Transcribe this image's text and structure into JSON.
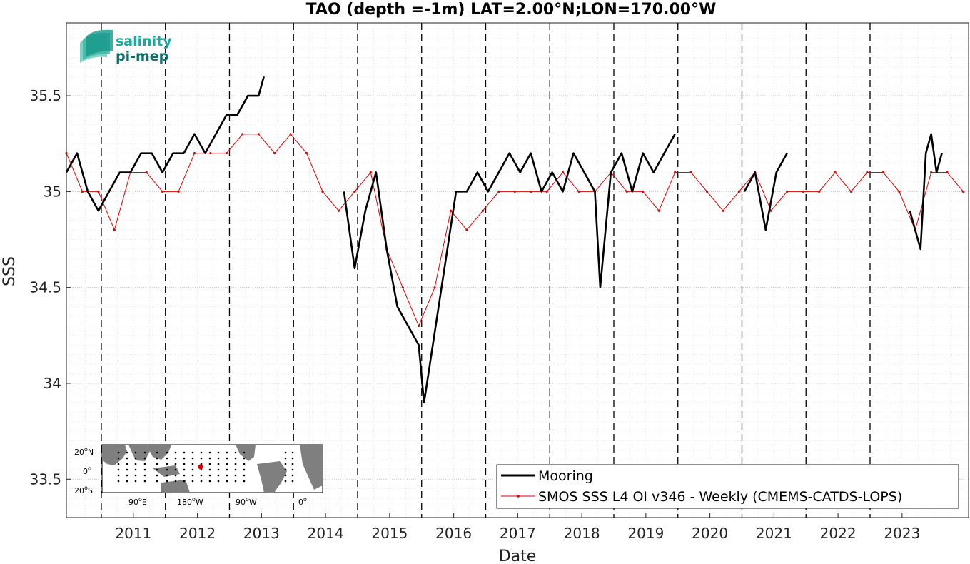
{
  "chart_data": {
    "type": "line",
    "title": "TAO (depth =-1m) LAT=2.00°N;LON=170.00°W",
    "xlabel": "Date",
    "ylabel": "SSS",
    "xlim": [
      "2010-06-15",
      "2024-07-15"
    ],
    "ylim": [
      33.3,
      35.88
    ],
    "x_ticks": [
      "2011",
      "2012",
      "2013",
      "2014",
      "2015",
      "2016",
      "2017",
      "2018",
      "2019",
      "2020",
      "2021",
      "2022",
      "2023"
    ],
    "y_ticks": [
      "33.5",
      "34",
      "34.5",
      "35",
      "35.5"
    ],
    "y_tick_values": [
      33.5,
      34,
      34.5,
      35,
      35.5
    ],
    "grid": "dotted minor + major",
    "year_boundaries": [
      "2011",
      "2012",
      "2013",
      "2014",
      "2015",
      "2016",
      "2017",
      "2018",
      "2019",
      "2020",
      "2021",
      "2022",
      "2023"
    ],
    "legend_placement": "bottom-right",
    "series": [
      {
        "name": "Mooring",
        "color": "#000000",
        "style": "thick line",
        "x": [
          "2010-06",
          "2010-08",
          "2010-10",
          "2010-12",
          "2011-02",
          "2011-04",
          "2011-06",
          "2011-08",
          "2011-10",
          "2011-12",
          "2012-02",
          "2012-04",
          "2012-06",
          "2012-08",
          "2012-10",
          "2012-12",
          "2013-02",
          "2013-04",
          "2013-06",
          "2013-07",
          "2014-10",
          "2014-12",
          "2015-02",
          "2015-04",
          "2015-06",
          "2015-08",
          "2015-10",
          "2015-12",
          "2016-01",
          "2016-07",
          "2016-09",
          "2016-11",
          "2017-01",
          "2017-03",
          "2017-05",
          "2017-07",
          "2017-09",
          "2017-11",
          "2018-01",
          "2018-03",
          "2018-05",
          "2018-07",
          "2018-09",
          "2018-10",
          "2018-12",
          "2019-02",
          "2019-04",
          "2019-06",
          "2019-08",
          "2019-10",
          "2019-12",
          "2021-01",
          "2021-03",
          "2021-05",
          "2021-07",
          "2021-09",
          "2023-08",
          "2023-10",
          "2023-11",
          "2023-12",
          "2024-01",
          "2024-02"
        ],
        "y": [
          35.1,
          35.2,
          35.0,
          34.9,
          35.0,
          35.1,
          35.1,
          35.2,
          35.2,
          35.1,
          35.2,
          35.2,
          35.3,
          35.2,
          35.3,
          35.4,
          35.4,
          35.5,
          35.5,
          35.6,
          35.0,
          34.6,
          34.9,
          35.1,
          34.7,
          34.4,
          34.3,
          34.2,
          33.9,
          35.0,
          35.0,
          35.1,
          35.0,
          35.1,
          35.2,
          35.1,
          35.2,
          35.0,
          35.1,
          35.0,
          35.2,
          35.1,
          35.0,
          34.5,
          35.1,
          35.2,
          35.0,
          35.2,
          35.1,
          35.2,
          35.3,
          35.0,
          35.1,
          34.8,
          35.1,
          35.2,
          34.9,
          34.7,
          35.2,
          35.3,
          35.1,
          35.2
        ]
      },
      {
        "name": "SMOS SSS L4 OI v346 - Weekly (CMEMS-CATDS-LOPS)",
        "color": "#e10000",
        "style": "thin line with dot markers",
        "x": [
          "2010-06",
          "2010-09",
          "2010-12",
          "2011-03",
          "2011-06",
          "2011-09",
          "2011-12",
          "2012-03",
          "2012-06",
          "2012-09",
          "2012-12",
          "2013-03",
          "2013-06",
          "2013-09",
          "2013-12",
          "2014-03",
          "2014-06",
          "2014-09",
          "2014-12",
          "2015-03",
          "2015-06",
          "2015-09",
          "2015-12",
          "2016-03",
          "2016-06",
          "2016-09",
          "2016-12",
          "2017-03",
          "2017-06",
          "2017-09",
          "2017-12",
          "2018-03",
          "2018-06",
          "2018-09",
          "2018-12",
          "2019-03",
          "2019-06",
          "2019-09",
          "2019-12",
          "2020-03",
          "2020-06",
          "2020-09",
          "2020-12",
          "2021-03",
          "2021-06",
          "2021-09",
          "2021-12",
          "2022-03",
          "2022-06",
          "2022-09",
          "2022-12",
          "2023-03",
          "2023-06",
          "2023-09",
          "2023-12",
          "2024-03",
          "2024-06"
        ],
        "y": [
          35.2,
          35.0,
          35.0,
          34.8,
          35.1,
          35.1,
          35.0,
          35.0,
          35.2,
          35.2,
          35.2,
          35.3,
          35.3,
          35.2,
          35.3,
          35.2,
          35.0,
          34.9,
          35.0,
          35.1,
          34.7,
          34.5,
          34.3,
          34.5,
          34.9,
          34.8,
          34.9,
          35.0,
          35.0,
          35.0,
          35.0,
          35.1,
          35.0,
          35.0,
          35.1,
          35.0,
          35.0,
          34.9,
          35.1,
          35.1,
          35.0,
          34.9,
          35.0,
          35.1,
          34.9,
          35.0,
          35.0,
          35.0,
          35.1,
          35.0,
          35.1,
          35.1,
          35.0,
          34.8,
          35.1,
          35.1,
          35.0
        ]
      }
    ]
  },
  "logo": {
    "line1": "salinity",
    "line2": "pi-mep",
    "color1": "#1aa99a",
    "color2": "#0f6f6a"
  },
  "inset_map": {
    "lat_labels": [
      "20",
      "N",
      "0",
      "20",
      "S"
    ],
    "lon_labels": [
      "90",
      "E",
      "180",
      "W",
      "90",
      "W",
      "0"
    ],
    "degree_sign": "o",
    "station_marker_color": "#e10000",
    "land_color": "#7f7f7f"
  },
  "colors": {
    "mooring": "#000000",
    "smos": "#e10000",
    "background": "#ffffff"
  }
}
